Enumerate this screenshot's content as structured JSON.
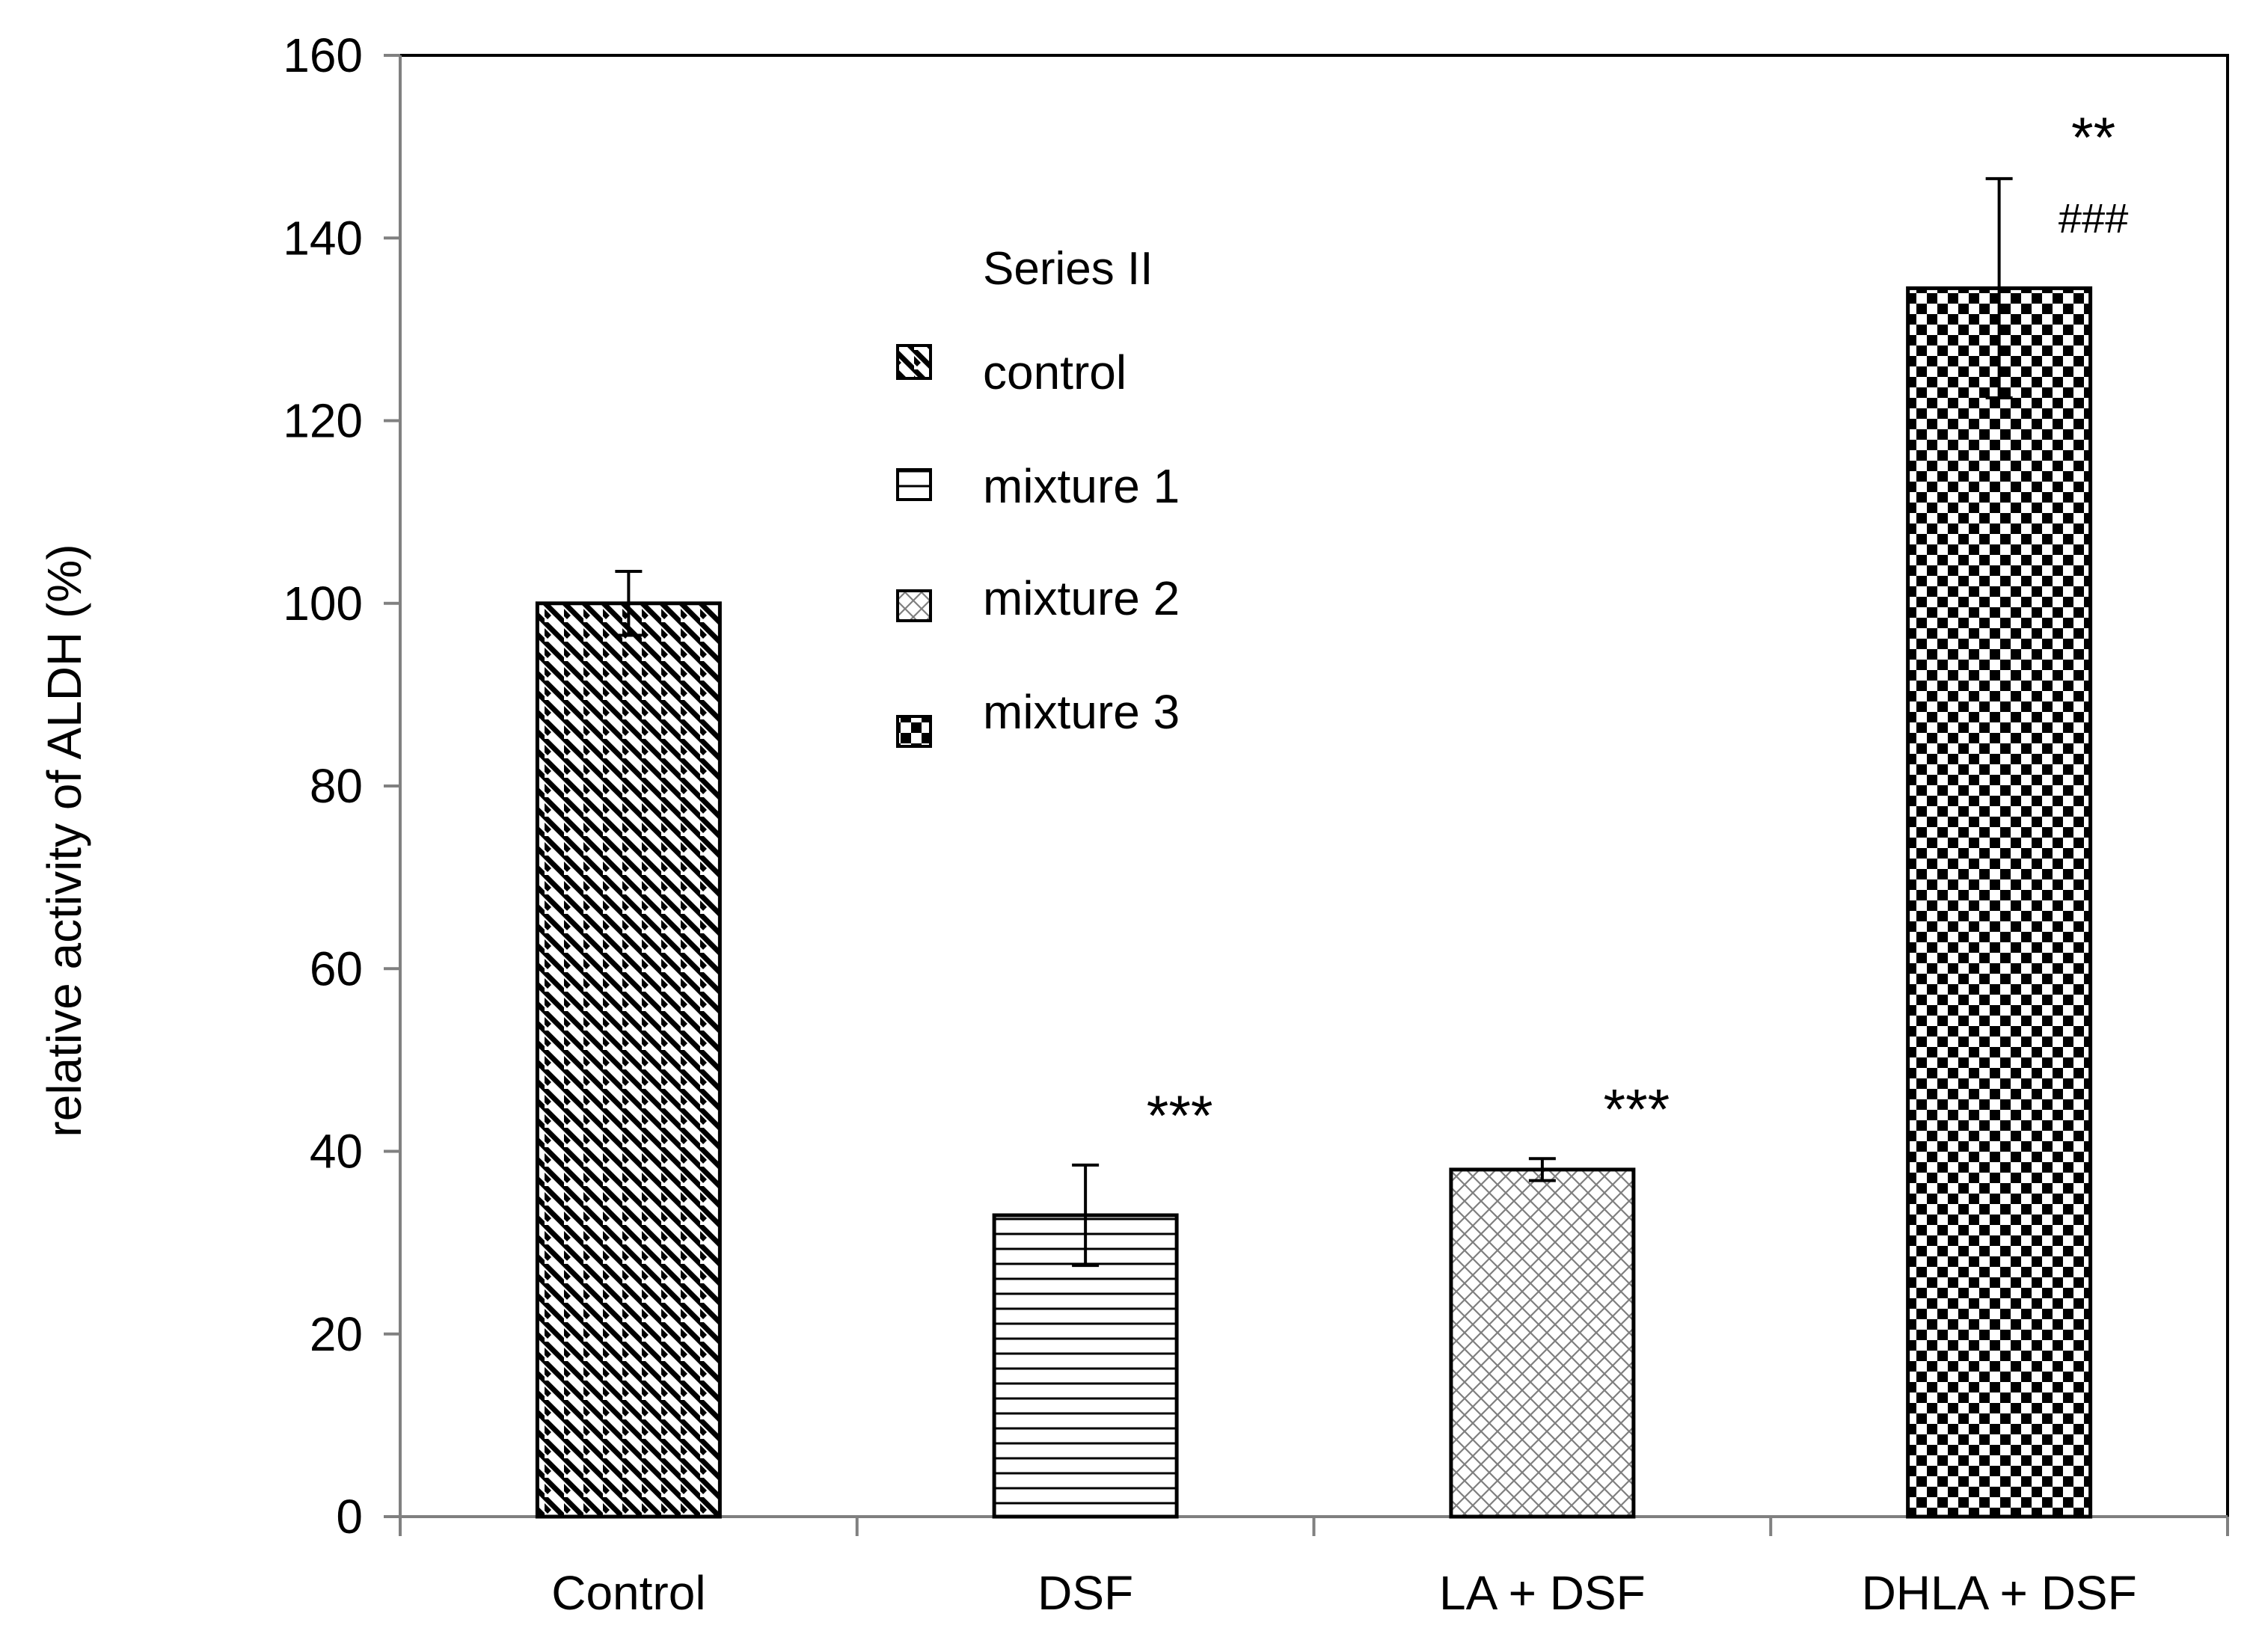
{
  "chart_data": {
    "type": "bar",
    "title": "",
    "xlabel": "",
    "ylabel": "relative activity of ALDH (%)",
    "ylim": [
      0,
      160
    ],
    "yticks": [
      0,
      20,
      40,
      60,
      80,
      100,
      120,
      140,
      160
    ],
    "categories": [
      "Control",
      "DSF",
      "LA + DSF",
      "DHLA + DSF"
    ],
    "values": [
      100,
      33,
      38,
      134.5
    ],
    "errors": [
      3.5,
      5.5,
      1.2,
      12
    ],
    "patterns": [
      "diagonal-stripes",
      "horizontal-lines",
      "crosshatch",
      "checkerboard"
    ],
    "significance": [
      "",
      "***",
      "***",
      "**"
    ],
    "significance_secondary": [
      "",
      "",
      "",
      "###"
    ],
    "legend": {
      "title": "Series II",
      "position": "top-center",
      "entries": [
        {
          "label": "control",
          "pattern": "diagonal-stripes"
        },
        {
          "label": "mixture 1",
          "pattern": "horizontal-lines"
        },
        {
          "label": "mixture 2",
          "pattern": "crosshatch"
        },
        {
          "label": "mixture 3",
          "pattern": "checkerboard"
        }
      ]
    },
    "colors": {
      "bar_stroke": "#000000",
      "axis": "#808080",
      "frame": "#000000",
      "crosshatch": "#7f7f7f"
    }
  }
}
